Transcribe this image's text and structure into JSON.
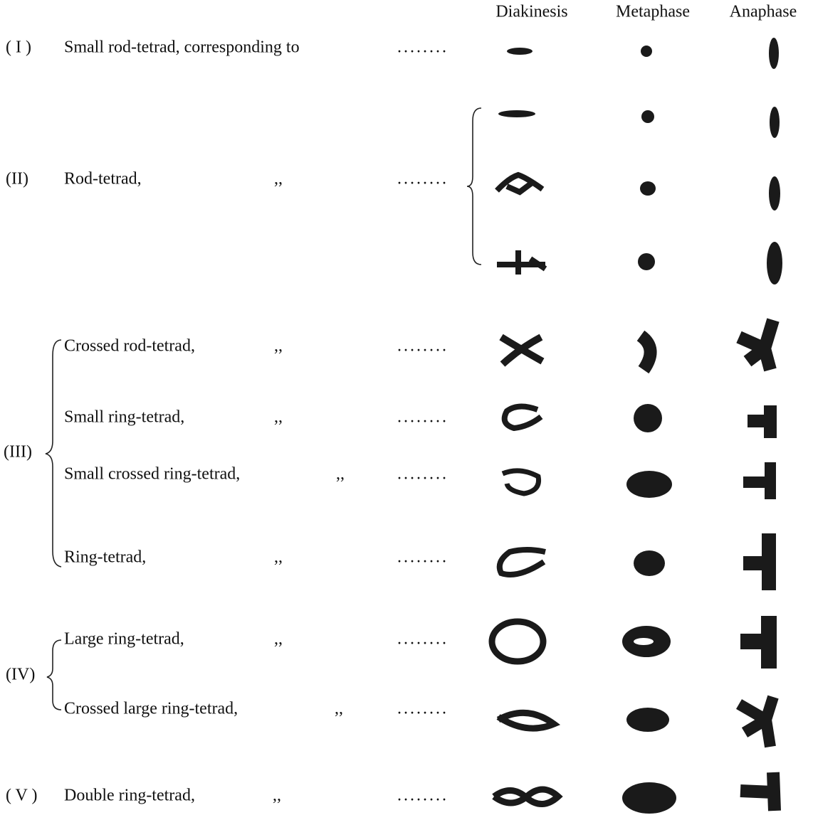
{
  "headers": [
    "Diakinesis",
    "Metaphase",
    "Anaphase"
  ],
  "groups": [
    {
      "label": "( I )",
      "rows": [
        {
          "text": "Small rod-tetrad, corresponding to",
          "leader": "........"
        }
      ]
    },
    {
      "label": "(II)",
      "rows": [
        {
          "text": "Rod-tetrad,",
          "ditto": ",,",
          "leader": "........"
        }
      ]
    },
    {
      "label": "(III)",
      "rows": [
        {
          "text": "Crossed rod-tetrad,",
          "ditto": ",,",
          "leader": "........"
        },
        {
          "text": "Small ring-tetrad,",
          "ditto": ",,",
          "leader": "........"
        },
        {
          "text": "Small crossed ring-tetrad,",
          "ditto": ",,",
          "leader": "........"
        },
        {
          "text": "Ring-tetrad,",
          "ditto": ",,",
          "leader": "........"
        }
      ]
    },
    {
      "label": "(IV)",
      "rows": [
        {
          "text": "Large ring-tetrad,",
          "ditto": ",,",
          "leader": "........"
        },
        {
          "text": "Crossed large ring-tetrad,",
          "ditto": ",,",
          "leader": "........"
        }
      ]
    },
    {
      "label": "( V )",
      "rows": [
        {
          "text": "Double ring-tetrad,",
          "ditto": ",,",
          "leader": "........"
        }
      ]
    }
  ]
}
